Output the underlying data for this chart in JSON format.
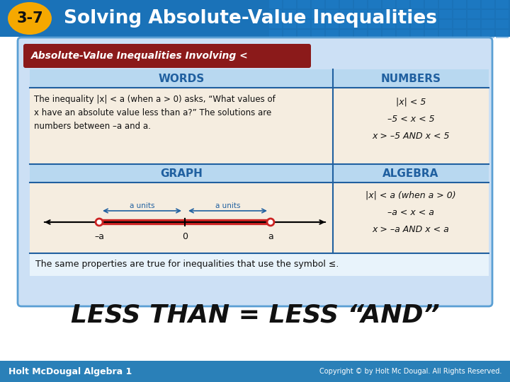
{
  "title_number": "3-7",
  "title_text": "Solving Absolute-Value Inequalities",
  "header_bg": "#1a72b8",
  "header_tile_color": "#2080cc",
  "badge_color": "#f5a800",
  "badge_text_color": "#111111",
  "card_bg": "#cce0f5",
  "card_border": "#5a9fd4",
  "table_header_bg": "#b8d8f0",
  "table_row_bg": "#f5ede0",
  "red_header_bg": "#8b1a1a",
  "red_header_text": "#ffffff",
  "bottom_bar_bg": "#2a80b8",
  "bottom_bar_text": "#ffffff",
  "main_text": "#111111",
  "less_than_label": "LESS THAN = LESS “AND”",
  "less_than_fontsize": 26,
  "footer_left": "Holt McDougal Algebra 1",
  "footer_right": "Copyright © by Holt Mc Dougal. All Rights Reserved.",
  "words_header": "WORDS",
  "numbers_header": "NUMBERS",
  "graph_header": "GRAPH",
  "algebra_header": "ALGEBRA",
  "words_text": "The inequality |x| < a (when a > 0) asks, “What values of\nx have an absolute value less than a?” The solutions are\nnumbers between –a and a.",
  "numbers_line1": "|x| < 5",
  "numbers_line2": "–5 < x < 5",
  "numbers_line3": "x > –5 AND x < 5",
  "algebra_line1": "|x| < a (when a > 0)",
  "algebra_line2": "–a < x < a",
  "algebra_line3": "x > –a AND x < a",
  "footer_note": "The same properties are true for inequalities that use the symbol ≤.",
  "divider_color": "#2060a0",
  "nl_line_color": "#cc2222",
  "nl_arrow_color": "#2060a0"
}
